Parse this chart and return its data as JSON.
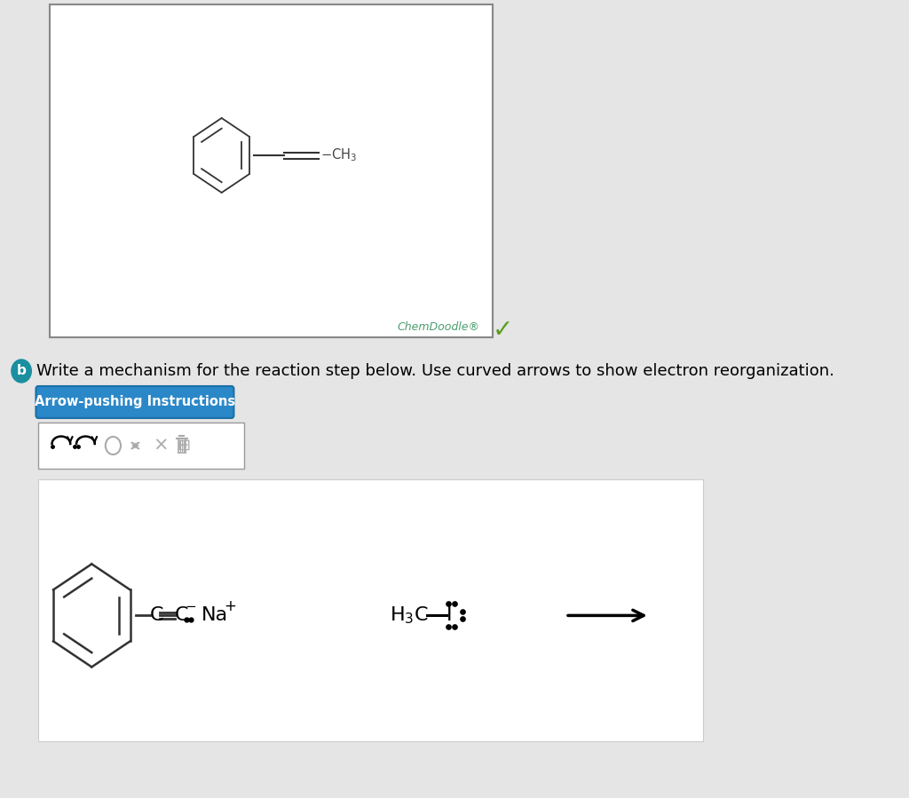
{
  "bg_color": "#e5e5e5",
  "white": "#ffffff",
  "text_color": "#000000",
  "teal_color": "#1a8fa0",
  "green_check_color": "#5a9e1e",
  "chemdoodle_color": "#4a9e6e",
  "blue_btn_color": "#2b88c8",
  "blue_btn_border": "#1a70a8",
  "question_text": "Write a mechanism for the reaction step below. Use curved arrows to show electron reorganization.",
  "arrow_btn_text": "Arrow-pushing Instructions",
  "chemdoodle_text": "ChemDoodle®",
  "panel_border": "#888888",
  "rxn_border": "#cccccc"
}
